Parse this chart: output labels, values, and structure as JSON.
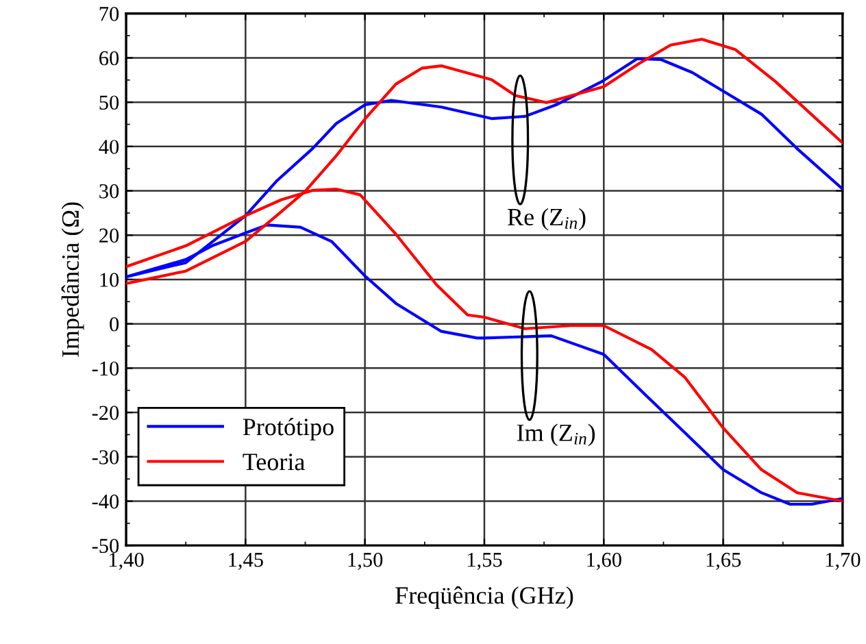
{
  "chart_data": {
    "type": "line",
    "xlabel": "Freqüência (GHz)",
    "ylabel": "Impedância (Ω)",
    "xlim": [
      1.4,
      1.7
    ],
    "ylim": [
      -50,
      70
    ],
    "xticks": [
      {
        "value": 1.4,
        "label": "1,40"
      },
      {
        "value": 1.45,
        "label": "1,45"
      },
      {
        "value": 1.5,
        "label": "1,50"
      },
      {
        "value": 1.55,
        "label": "1,55"
      },
      {
        "value": 1.6,
        "label": "1,60"
      },
      {
        "value": 1.65,
        "label": "1,65"
      },
      {
        "value": 1.7,
        "label": "1,70"
      }
    ],
    "yticks": [
      -50,
      -40,
      -30,
      -20,
      -10,
      0,
      10,
      20,
      30,
      40,
      50,
      60,
      70
    ],
    "grid": true,
    "legend": "bottom left",
    "line_style": "solid",
    "marker": "none",
    "series": [
      {
        "name": "Protótipo",
        "color": "#0000ff",
        "x": [
          1.4,
          1.425,
          1.45,
          1.463,
          1.478,
          1.488,
          1.5,
          1.511,
          1.532,
          1.553,
          1.567,
          1.58,
          1.599,
          1.614,
          1.624,
          1.637,
          1.65,
          1.666,
          1.681,
          1.7
        ],
        "values": [
          10.6,
          13.8,
          24.4,
          32.2,
          39.5,
          45.2,
          49.4,
          50.4,
          48.9,
          46.3,
          46.8,
          49.4,
          54.6,
          59.8,
          59.6,
          56.7,
          52.5,
          47.3,
          39.5,
          30.4
        ]
      },
      {
        "color": "#0000ff",
        "x": [
          1.4,
          1.425,
          1.436,
          1.45,
          1.459,
          1.473,
          1.486,
          1.5,
          1.513,
          1.532,
          1.547,
          1.55,
          1.578,
          1.6,
          1.618,
          1.634,
          1.65,
          1.666,
          1.678,
          1.687,
          1.7
        ],
        "values": [
          10.6,
          14.5,
          17.6,
          20.5,
          22.3,
          21.8,
          18.6,
          10.8,
          4.6,
          -1.7,
          -3.2,
          -3.2,
          -2.7,
          -6.9,
          -16.3,
          -24.6,
          -32.9,
          -38.1,
          -40.7,
          -40.7,
          -39.4
        ]
      },
      {
        "name": "Teoria",
        "color": "#ff0000",
        "x": [
          1.4,
          1.425,
          1.45,
          1.463,
          1.475,
          1.488,
          1.5,
          1.513,
          1.524,
          1.532,
          1.553,
          1.563,
          1.576,
          1.6,
          1.615,
          1.628,
          1.641,
          1.655,
          1.672,
          1.7
        ],
        "values": [
          9.1,
          11.9,
          18.6,
          24.4,
          29.9,
          37.9,
          46.2,
          54.1,
          57.7,
          58.2,
          55.1,
          51.5,
          49.9,
          53.5,
          58.8,
          62.9,
          64.2,
          61.9,
          54.6,
          40.8
        ]
      },
      {
        "color": "#ff0000",
        "x": [
          1.4,
          1.425,
          1.45,
          1.465,
          1.478,
          1.488,
          1.498,
          1.513,
          1.53,
          1.543,
          1.55,
          1.567,
          1.586,
          1.6,
          1.62,
          1.634,
          1.65,
          1.666,
          1.681,
          1.7
        ],
        "values": [
          12.9,
          17.6,
          24.4,
          28.0,
          30.1,
          30.4,
          29.1,
          20.2,
          8.8,
          2.0,
          1.5,
          -1.1,
          -0.4,
          -0.4,
          -5.8,
          -12.1,
          -23.5,
          -32.9,
          -38.1,
          -40.0
        ]
      }
    ],
    "annotations": [
      "Re (Z$_{in}$)",
      "Im (Z$_{in}$)"
    ]
  }
}
